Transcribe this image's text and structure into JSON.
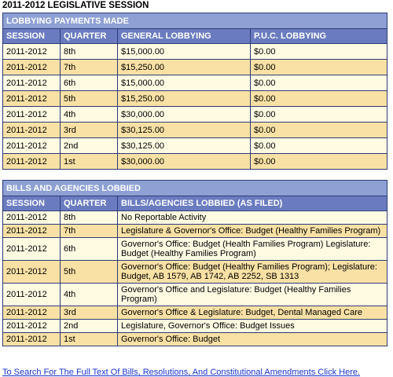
{
  "page_title": "2011-2012 LEGISLATIVE SESSION",
  "payments": {
    "title": "LOBBYING PAYMENTS MADE",
    "columns": [
      "SESSION",
      "QUARTER",
      "GENERAL LOBBYING",
      "P.U.C. LOBBYING"
    ],
    "rows": [
      [
        "2011-2012",
        "8th",
        "$15,000.00",
        "$0.00"
      ],
      [
        "2011-2012",
        "7th",
        "$15,250.00",
        "$0.00"
      ],
      [
        "2011-2012",
        "6th",
        "$15,000.00",
        "$0.00"
      ],
      [
        "2011-2012",
        "5th",
        "$15,250.00",
        "$0.00"
      ],
      [
        "2011-2012",
        "4th",
        "$30,000.00",
        "$0.00"
      ],
      [
        "2011-2012",
        "3rd",
        "$30,125.00",
        "$0.00"
      ],
      [
        "2011-2012",
        "2nd",
        "$30,125.00",
        "$0.00"
      ],
      [
        "2011-2012",
        "1st",
        "$30,000.00",
        "$0.00"
      ]
    ]
  },
  "bills": {
    "title": "BILLS AND AGENCIES LOBBIED",
    "columns": [
      "SESSION",
      "QUARTER",
      "BILLS/AGENCIES LOBBIED (AS FILED)"
    ],
    "rows": [
      [
        "2011-2012",
        "8th",
        "No Reportable Activity"
      ],
      [
        "2011-2012",
        "7th",
        "Legislature & Governor's Office: Budget (Healthy Families Program)"
      ],
      [
        "2011-2012",
        "6th",
        "Governor's Office: Budget (Health Families Program) Legislature: Budget (Healthy Families Program)"
      ],
      [
        "2011-2012",
        "5th",
        "Governor's Office: Budget (Healthy Families Program); Legislature: Budget, AB 1579, AB 1742, AB 2252, SB 1313"
      ],
      [
        "2011-2012",
        "4th",
        "Governor's Office and Legislature: Budget (Healthy Families Program)"
      ],
      [
        "2011-2012",
        "3rd",
        "Governor's Office & Legislature: Budget, Dental Managed Care"
      ],
      [
        "2011-2012",
        "2nd",
        "Legislature, Governor's Office: Budget Issues"
      ],
      [
        "2011-2012",
        "1st",
        "Governor's Office: Budget"
      ]
    ]
  },
  "footer_link": "To Search For The Full Text Of Bills, Resolutions, And Constitutional Amendments Click Here."
}
